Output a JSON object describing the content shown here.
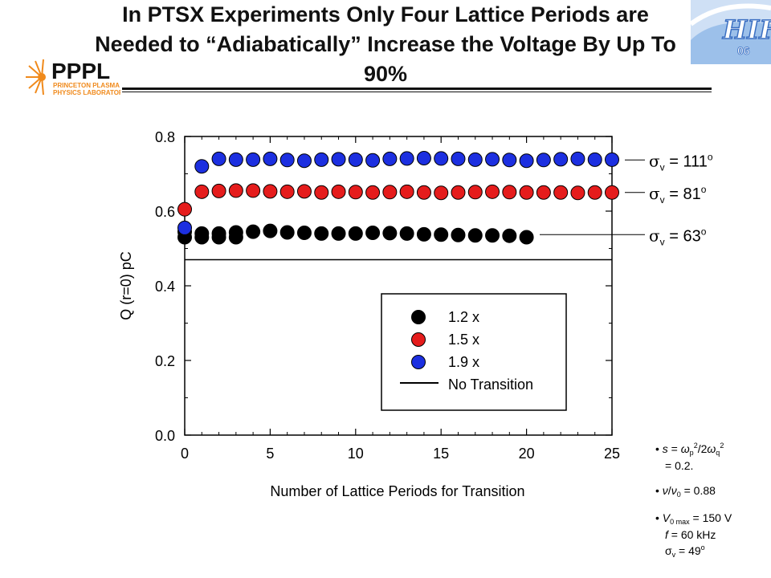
{
  "title": "In PTSX Experiments Only Four Lattice Periods are Needed to “Adiabatically” Increase the Voltage By Up To 90%",
  "logos": {
    "pppl_main": "PPPL",
    "pppl_sub1": "PRINCETON PLASMA",
    "pppl_sub2": "PHYSICS LABORATORY",
    "hif_main": "HIF",
    "hif_year": "06"
  },
  "colors": {
    "black": "#000000",
    "red": "#e51c1c",
    "blue": "#1c2fe0",
    "logo_orange": "#f08a1c",
    "logo_blue": "#3b6fc2"
  },
  "chart_data": {
    "type": "scatter",
    "xlabel": "Number of Lattice Periods for Transition",
    "ylabel": "Q (r=0) pC",
    "xlim": [
      0,
      25
    ],
    "ylim": [
      0,
      0.8
    ],
    "xticks": [
      "0",
      "5",
      "10",
      "15",
      "20",
      "25"
    ],
    "yticks": [
      "0.0",
      "0.2",
      "0.4",
      "0.6",
      "0.8"
    ],
    "series": [
      {
        "name": "1.2 x",
        "color": "#000000",
        "x": [
          0,
          0,
          1,
          1,
          2,
          2,
          3,
          3,
          4,
          5,
          6,
          7,
          8,
          9,
          10,
          11,
          12,
          13,
          14,
          15,
          16,
          17,
          18,
          19,
          20
        ],
        "y": [
          0.53,
          0.545,
          0.53,
          0.54,
          0.53,
          0.54,
          0.53,
          0.543,
          0.545,
          0.547,
          0.543,
          0.542,
          0.54,
          0.54,
          0.54,
          0.542,
          0.541,
          0.54,
          0.538,
          0.537,
          0.536,
          0.535,
          0.535,
          0.534,
          0.53
        ]
      },
      {
        "name": "1.5 x",
        "color": "#e51c1c",
        "x": [
          0,
          1,
          2,
          3,
          4,
          5,
          6,
          7,
          8,
          9,
          10,
          11,
          12,
          13,
          14,
          15,
          16,
          17,
          18,
          19,
          20,
          21,
          22,
          23,
          24,
          25
        ],
        "y": [
          0.605,
          0.652,
          0.654,
          0.655,
          0.655,
          0.653,
          0.652,
          0.653,
          0.65,
          0.652,
          0.651,
          0.65,
          0.651,
          0.652,
          0.65,
          0.649,
          0.65,
          0.651,
          0.652,
          0.651,
          0.65,
          0.65,
          0.65,
          0.649,
          0.65,
          0.65
        ]
      },
      {
        "name": "1.9 x",
        "color": "#1c2fe0",
        "x": [
          0,
          1,
          2,
          3,
          4,
          5,
          6,
          7,
          8,
          9,
          10,
          11,
          12,
          13,
          14,
          15,
          16,
          17,
          18,
          19,
          20,
          21,
          22,
          23,
          24,
          25
        ],
        "y": [
          0.555,
          0.72,
          0.74,
          0.738,
          0.738,
          0.74,
          0.737,
          0.735,
          0.738,
          0.739,
          0.738,
          0.736,
          0.74,
          0.741,
          0.742,
          0.741,
          0.74,
          0.738,
          0.739,
          0.737,
          0.735,
          0.737,
          0.739,
          0.74,
          0.738,
          0.738
        ]
      }
    ],
    "reference_line": {
      "name": "No Transition",
      "y": 0.47
    },
    "legend": {
      "placement": "bottom-right"
    },
    "annotations": [
      {
        "symbol": "σ",
        "sub": "v",
        "value": " = 111",
        "sup": "o",
        "y": 0.737
      },
      {
        "symbol": "σ",
        "sub": "v",
        "value": " = 81",
        "sup": "o",
        "y": 0.65
      },
      {
        "symbol": "σ",
        "sub": "v",
        "value": " = 63",
        "sup": "o",
        "y": 0.537
      }
    ]
  },
  "notes": {
    "n1_s": "s",
    "n1_eq": " = ",
    "n1_wp": "ω",
    "n1_p": "p",
    "n1_two": "2",
    "n1_div": "/2",
    "n1_wq": "ω",
    "n1_q": "q",
    "n1_two2": "2",
    "n1_val": "= 0.2.",
    "n2_nu": "ν",
    "n2_slash": "/",
    "n2_nu0": "ν",
    "n2_zero": "0",
    "n2_val": " = 0.88",
    "n3_v": "V",
    "n3_vsub": "0 max",
    "n3_vval": " = 150 V",
    "n3_f": "f",
    "n3_fval": " = 60 kHz",
    "n3_sig": "σ",
    "n3_sigsub": "v",
    "n3_sigval": " = 49",
    "n3_sigsup": "o"
  }
}
